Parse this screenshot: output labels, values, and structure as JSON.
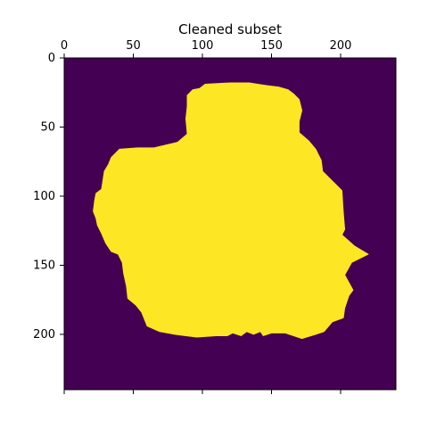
{
  "chart_data": {
    "type": "heatmap",
    "title": "Cleaned subset",
    "xlabel": "",
    "ylabel": "",
    "image_size": [
      240,
      240
    ],
    "xlim": [
      0,
      240
    ],
    "ylim": [
      240,
      0
    ],
    "x_axis_position": "top",
    "x_ticks": [
      0,
      50,
      100,
      150,
      200
    ],
    "y_ticks": [
      0,
      50,
      100,
      150,
      200
    ],
    "grid": false,
    "legend": "none",
    "colormap": "viridis",
    "colors": {
      "background_value_color": "#440154",
      "mask_value_color": "#fde725",
      "axis_color": "#000000"
    },
    "values": {
      "background": 0,
      "mask": 1
    },
    "mask_outline": [
      [
        89,
        27
      ],
      [
        93,
        23
      ],
      [
        98,
        22
      ],
      [
        102,
        19
      ],
      [
        120,
        18
      ],
      [
        134,
        18
      ],
      [
        140,
        19
      ],
      [
        147,
        20
      ],
      [
        155,
        21
      ],
      [
        162,
        23
      ],
      [
        166,
        26
      ],
      [
        170,
        30
      ],
      [
        172,
        38
      ],
      [
        170,
        46
      ],
      [
        170,
        54
      ],
      [
        177,
        60
      ],
      [
        182,
        66
      ],
      [
        186,
        74
      ],
      [
        187,
        82
      ],
      [
        193,
        88
      ],
      [
        201,
        96
      ],
      [
        202,
        112
      ],
      [
        203,
        124
      ],
      [
        201,
        128
      ],
      [
        210,
        136
      ],
      [
        220,
        142
      ],
      [
        208,
        148
      ],
      [
        203,
        157
      ],
      [
        209,
        168
      ],
      [
        206,
        172
      ],
      [
        203,
        181
      ],
      [
        202,
        188
      ],
      [
        194,
        191
      ],
      [
        188,
        198
      ],
      [
        182,
        200
      ],
      [
        172,
        203
      ],
      [
        160,
        199
      ],
      [
        150,
        199
      ],
      [
        144,
        201
      ],
      [
        142,
        198
      ],
      [
        137,
        200
      ],
      [
        132,
        198
      ],
      [
        128,
        201
      ],
      [
        122,
        199
      ],
      [
        118,
        201
      ],
      [
        110,
        201
      ],
      [
        96,
        202
      ],
      [
        88,
        201
      ],
      [
        80,
        200
      ],
      [
        69,
        198
      ],
      [
        60,
        194
      ],
      [
        56,
        184
      ],
      [
        52,
        179
      ],
      [
        46,
        174
      ],
      [
        45,
        165
      ],
      [
        43,
        156
      ],
      [
        42,
        148
      ],
      [
        39,
        142
      ],
      [
        34,
        140
      ],
      [
        30,
        134
      ],
      [
        27,
        127
      ],
      [
        24,
        121
      ],
      [
        23,
        116
      ],
      [
        21,
        111
      ],
      [
        22,
        103
      ],
      [
        23,
        98
      ],
      [
        27,
        95
      ],
      [
        29,
        82
      ],
      [
        32,
        77
      ],
      [
        34,
        72
      ],
      [
        40,
        66
      ],
      [
        53,
        65
      ],
      [
        65,
        65
      ],
      [
        82,
        61
      ],
      [
        89,
        55
      ],
      [
        88,
        44
      ],
      [
        89,
        35
      ]
    ]
  }
}
